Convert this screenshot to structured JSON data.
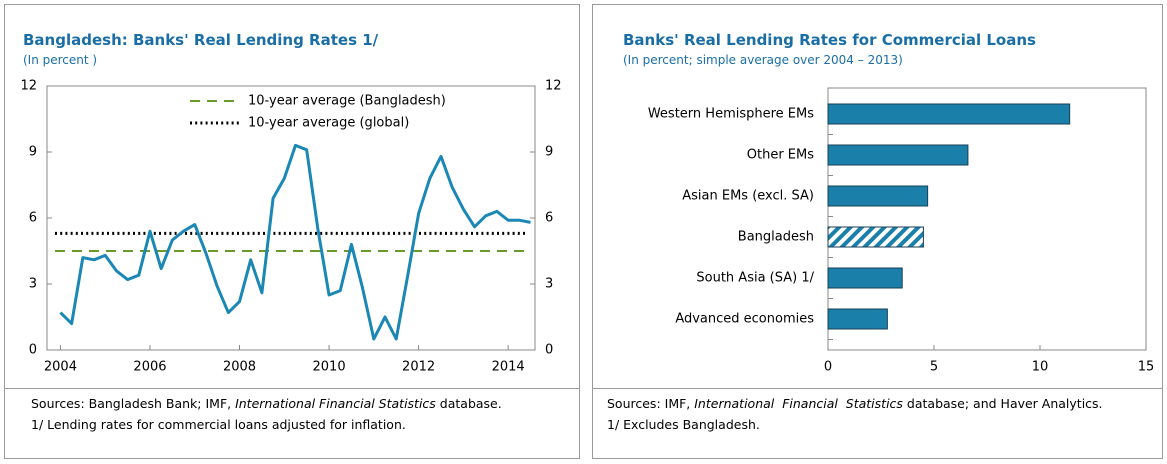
{
  "chart_data": [
    {
      "type": "line",
      "title": "Bangladesh: Banks' Real Lending Rates 1/",
      "subtitle": "(In percent )",
      "x": [
        2004,
        2004.25,
        2004.5,
        2004.75,
        2005,
        2005.25,
        2005.5,
        2005.75,
        2006,
        2006.25,
        2006.5,
        2006.75,
        2007,
        2007.25,
        2007.5,
        2007.75,
        2008,
        2008.25,
        2008.5,
        2008.75,
        2009,
        2009.25,
        2009.5,
        2009.75,
        2010,
        2010.25,
        2010.5,
        2010.75,
        2011,
        2011.25,
        2011.5,
        2011.75,
        2012,
        2012.25,
        2012.5,
        2012.75,
        2013,
        2013.25,
        2013.5,
        2013.75,
        2014,
        2014.25,
        2014.5
      ],
      "series": [
        {
          "color": "#1a87b5",
          "values": [
            1.7,
            1.2,
            4.2,
            4.1,
            4.3,
            3.6,
            3.2,
            3.4,
            5.4,
            3.7,
            5.0,
            5.4,
            5.7,
            4.4,
            2.9,
            1.7,
            2.2,
            4.1,
            2.6,
            6.9,
            7.8,
            9.3,
            9.1,
            5.5,
            2.5,
            2.7,
            4.8,
            2.8,
            0.5,
            1.5,
            0.5,
            3.3,
            6.2,
            7.8,
            8.8,
            7.4,
            6.4,
            5.6,
            6.1,
            6.3,
            5.9,
            5.9,
            5.8
          ]
        }
      ],
      "hlines": [
        {
          "name": "10-year average (Bangladesh)",
          "color": "#6a9a2a",
          "value": 4.5,
          "dash": "dashed"
        },
        {
          "name": "10-year average (global)",
          "color": "#000000",
          "value": 5.3,
          "dash": "dotted"
        }
      ],
      "xlim": [
        2003.7,
        2014.6
      ],
      "xticks": [
        2004,
        2006,
        2008,
        2010,
        2012,
        2014
      ],
      "ylim": [
        0,
        12
      ],
      "yticks": [
        0,
        3,
        6,
        9,
        12
      ],
      "y2lim": [
        0,
        12
      ],
      "y2ticks": [
        0,
        3,
        6,
        9,
        12
      ],
      "sources": [
        "Sources: Bangladesh Bank; IMF, ",
        "International Financial Statistics",
        " database."
      ],
      "note": "1/ Lending rates for commercial loans adjusted for inflation."
    },
    {
      "type": "hbar",
      "title": "Banks' Real Lending Rates for Commercial Loans",
      "subtitle": "(In percent; simple average over 2004 – 2013)",
      "categories": [
        "Western Hemisphere EMs",
        "Other EMs",
        "Asian EMs (excl. SA)",
        "Bangladesh",
        "South Asia (SA) 1/",
        "Advanced economies"
      ],
      "values": [
        11.4,
        6.6,
        4.7,
        4.5,
        3.5,
        2.8
      ],
      "color": "#1a80aa",
      "hatched": "Bangladesh",
      "xlim": [
        0,
        15
      ],
      "xticks": [
        0,
        5,
        10,
        15
      ],
      "sources": [
        "Sources: IMF, ",
        "International  Financial  Statistics",
        " database; and Haver Analytics."
      ],
      "note": "1/ Excludes Bangladesh."
    }
  ]
}
